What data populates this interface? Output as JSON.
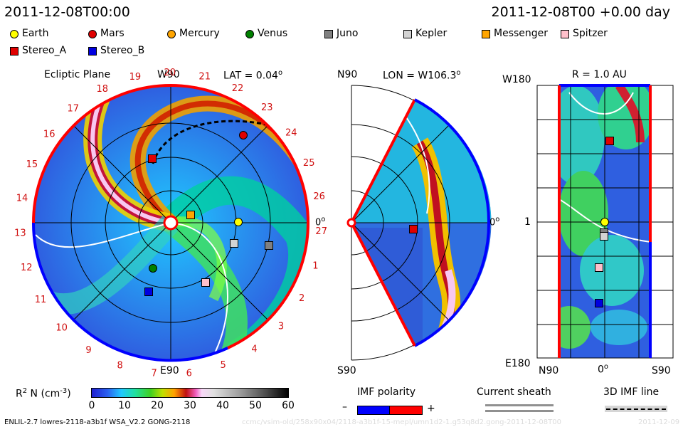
{
  "header": {
    "timestamp_left": "2011-12-08T00:00",
    "timestamp_right": "2011-12-08T00 +0.00 day"
  },
  "legend": [
    {
      "label": "Earth",
      "shape": "circle",
      "color": "#ffff00"
    },
    {
      "label": "Mars",
      "shape": "circle",
      "color": "#e00000"
    },
    {
      "label": "Mercury",
      "shape": "circle",
      "color": "#ffa500"
    },
    {
      "label": "Venus",
      "shape": "circle",
      "color": "#008000"
    },
    {
      "label": "Juno",
      "shape": "square",
      "color": "#808080"
    },
    {
      "label": "Kepler",
      "shape": "square",
      "color": "#d3d3d3"
    },
    {
      "label": "Messenger",
      "shape": "square",
      "color": "#ffa500"
    },
    {
      "label": "Spitzer",
      "shape": "square",
      "color": "#ffc0cb"
    },
    {
      "label": "Stereo_A",
      "shape": "square",
      "color": "#e00000"
    },
    {
      "label": "Stereo_B",
      "shape": "square",
      "color": "#0000e0"
    }
  ],
  "ecliptic_panel": {
    "title": "Ecliptic Plane",
    "top_label": "W90",
    "lat_label": "LAT = 0.04",
    "degree_sign": "o",
    "right_label": "0",
    "bottom_label": "E90",
    "carrington_numbers": [
      "1",
      "2",
      "3",
      "4",
      "5",
      "6",
      "7",
      "8",
      "9",
      "10",
      "11",
      "12",
      "13",
      "14",
      "15",
      "16",
      "17",
      "18",
      "19",
      "20",
      "21",
      "22",
      "23",
      "24",
      "25",
      "26",
      "27"
    ]
  },
  "meridional_panel": {
    "top_label": "N90",
    "lon_label": "LON = W106.3",
    "degree_sign": "o",
    "right_label": "0",
    "bottom_label": "S90"
  },
  "radial_panel": {
    "r_label": "R = 1.0 AU",
    "top_left": "W180",
    "mid_left": "1",
    "bottom_left": "E180",
    "bottom_n90": "N90",
    "bottom_zero": "0",
    "bottom_s90": "S90",
    "degree_sign": "o"
  },
  "colorbar": {
    "label_prefix": "R",
    "label_sup": "2",
    "label_mid": " N (cm",
    "label_sup2": "-3",
    "label_suffix": ")",
    "ticks": [
      "0",
      "10",
      "20",
      "30",
      "40",
      "50",
      "60"
    ]
  },
  "imf_polarity": {
    "label": "IMF polarity",
    "minus": "–",
    "plus": "+",
    "neg_color": "#0000ff",
    "pos_color": "#ff0000"
  },
  "current_sheath": {
    "label": "Current sheath"
  },
  "imf_line": {
    "label": "3D IMF line"
  },
  "footer": {
    "model_info": "ENLIL-2.7 lowres-2118-a3b1f WSA_V2.2 GONG-2118",
    "run_path": "ccmc/vsim-old/258x90x04/2118-a3b1f-15-mepl/umn1d2-1.g53q8d2.gong-2011-12-08T00",
    "date_faint": "2011-12-09"
  }
}
